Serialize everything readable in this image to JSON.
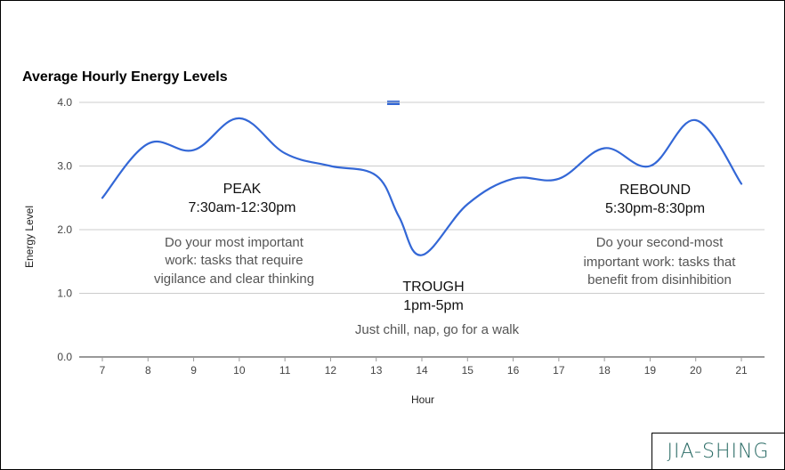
{
  "colors": {
    "series": "#3367d6",
    "brand": "#2a6b65"
  },
  "brand": {
    "text": "JIA-SHING"
  },
  "chart_data": {
    "type": "line",
    "title": "Average Hourly Energy Levels",
    "xlabel": "Hour",
    "ylabel": "Energy Level",
    "ylim": [
      0,
      4
    ],
    "yticks": [
      "0.0",
      "1.0",
      "2.0",
      "3.0",
      "4.0"
    ],
    "categories": [
      "7",
      "8",
      "9",
      "10",
      "11",
      "12",
      "13",
      "14",
      "15",
      "16",
      "17",
      "18",
      "19",
      "20",
      "21"
    ],
    "series": [
      {
        "name": "Energy Level",
        "points": [
          [
            7,
            2.5
          ],
          [
            8,
            3.35
          ],
          [
            9,
            3.25
          ],
          [
            10,
            3.75
          ],
          [
            11,
            3.2
          ],
          [
            12,
            3.0
          ],
          [
            13,
            2.85
          ],
          [
            13.5,
            2.2
          ],
          [
            14,
            1.6
          ],
          [
            15,
            2.4
          ],
          [
            16,
            2.8
          ],
          [
            17,
            2.8
          ],
          [
            18,
            3.28
          ],
          [
            19,
            3.0
          ],
          [
            20,
            3.72
          ],
          [
            21,
            2.72
          ]
        ]
      }
    ],
    "legend": "top-center",
    "annotations": {
      "peak": {
        "heading": "PEAK",
        "range": "7:30am-12:30pm",
        "lines": [
          "Do your most important",
          "work: tasks that require",
          "vigilance and clear thinking"
        ]
      },
      "trough": {
        "heading": "TROUGH",
        "range": "1pm-5pm",
        "lines": [
          "Just chill, nap, go for a walk"
        ]
      },
      "rebound": {
        "heading": "REBOUND",
        "range": "5:30pm-8:30pm",
        "lines": [
          "Do your second-most",
          "important work: tasks that",
          "benefit from disinhibition"
        ]
      }
    }
  }
}
